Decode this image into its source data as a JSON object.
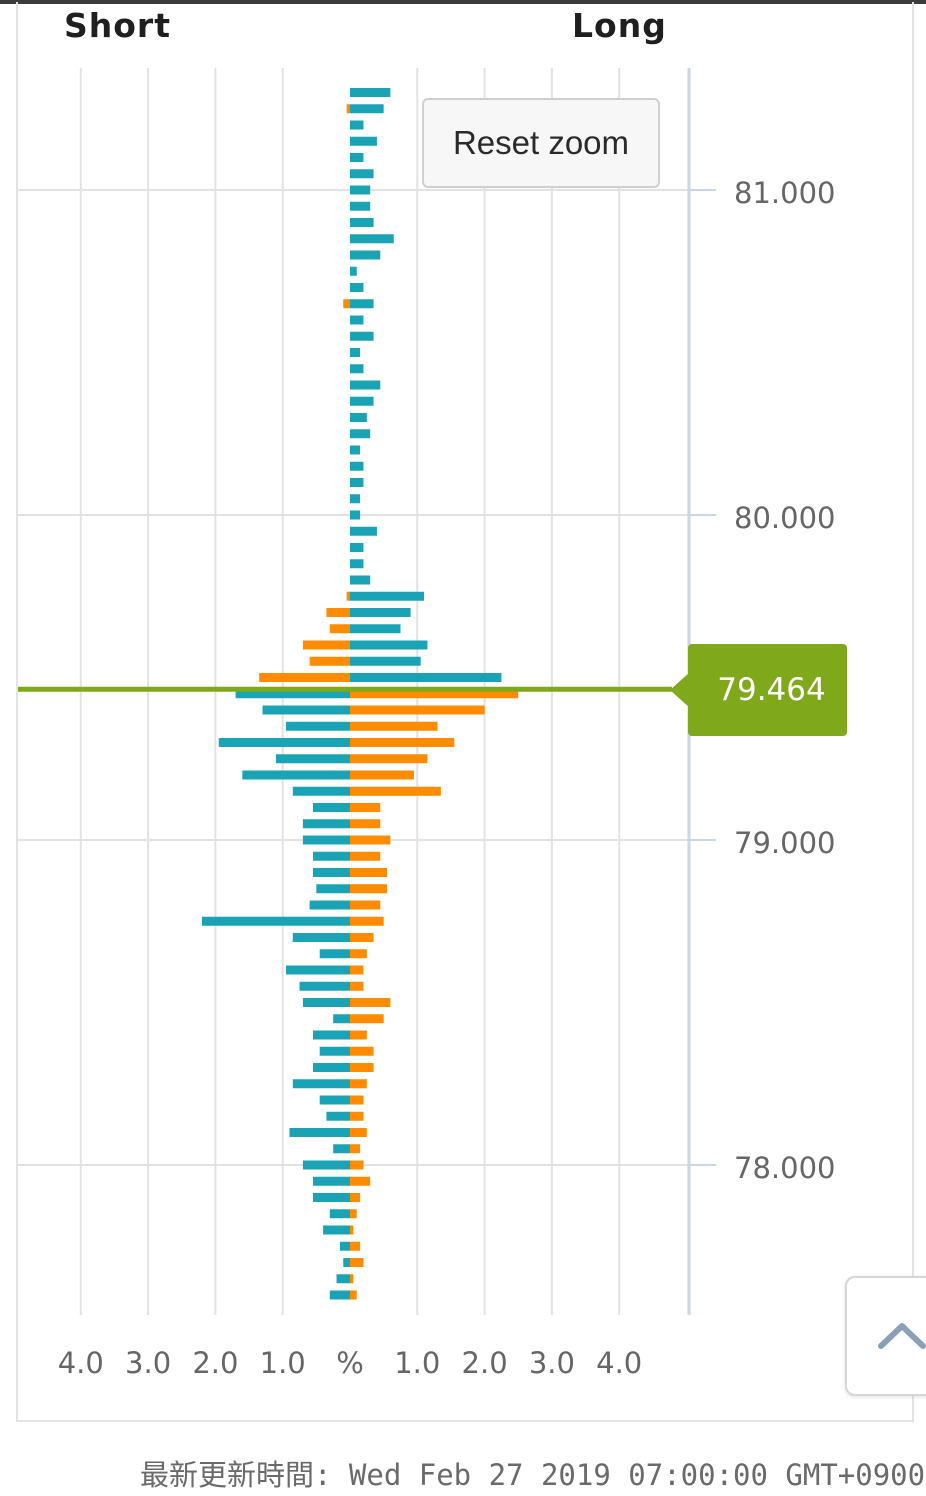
{
  "header": {
    "short_label": "Short",
    "long_label": "Long"
  },
  "reset_zoom_label": "Reset zoom",
  "current_price": "79.464",
  "last_updated": "最新更新時間: Wed Feb 27 2019 07:00:00 GMT+0900",
  "colors": {
    "long": "#1aa3b4",
    "short": "#ff8c00",
    "price_line": "#7fa81a",
    "grid": "#e2e2e2",
    "axis": "#c9d6e8"
  },
  "icons": {
    "scroll_top": "chevron-up-icon"
  },
  "chart_data": {
    "type": "bar",
    "orientation": "horizontal",
    "y_axis": {
      "ticks": [
        "81.000",
        "80.000",
        "79.000",
        "78.000"
      ],
      "range": [
        77.55,
        81.38
      ],
      "position": "right"
    },
    "x_axis": {
      "ticks": [
        "4.0",
        "3.0",
        "2.0",
        "1.0",
        "%",
        "1.0",
        "2.0",
        "3.0",
        "4.0"
      ],
      "range": [
        -4.0,
        4.0
      ],
      "unit": "%"
    },
    "current_price": 79.464,
    "series": [
      {
        "name": "Short",
        "price": [
          81.3,
          81.25,
          81.2,
          81.15,
          81.1,
          81.05,
          81.0,
          80.95,
          80.9,
          80.85,
          80.8,
          80.75,
          80.7,
          80.65,
          80.6,
          80.55,
          80.5,
          80.45,
          80.4,
          80.35,
          80.3,
          80.25,
          80.2,
          80.15,
          80.1,
          80.05,
          80.0,
          79.95,
          79.9,
          79.85,
          79.8,
          79.75,
          79.7,
          79.65,
          79.6,
          79.55,
          79.5,
          79.45,
          79.4,
          79.35,
          79.3,
          79.25,
          79.2,
          79.15,
          79.1,
          79.05,
          79.0,
          78.95,
          78.9,
          78.85,
          78.8,
          78.75,
          78.7,
          78.65,
          78.6,
          78.55,
          78.5,
          78.45,
          78.4,
          78.35,
          78.3,
          78.25,
          78.2,
          78.15,
          78.1,
          78.05,
          78.0,
          77.95,
          77.9,
          77.85,
          77.8,
          77.75,
          77.7,
          77.65,
          77.6
        ],
        "values": [
          0.0,
          0.05,
          0.0,
          0.0,
          0.0,
          0.0,
          0.0,
          0.0,
          0.0,
          0.0,
          0.0,
          0.0,
          0.0,
          0.1,
          0.0,
          0.0,
          0.0,
          0.0,
          0.0,
          0.0,
          0.0,
          0.0,
          0.0,
          0.0,
          0.0,
          0.0,
          0.0,
          0.0,
          0.0,
          0.0,
          0.0,
          0.05,
          0.35,
          0.3,
          0.7,
          0.6,
          1.35,
          1.7,
          1.3,
          0.95,
          1.95,
          1.1,
          1.6,
          0.85,
          0.55,
          0.7,
          0.7,
          0.55,
          0.55,
          0.5,
          0.6,
          2.2,
          0.85,
          0.45,
          0.95,
          0.75,
          0.7,
          0.25,
          0.55,
          0.45,
          0.55,
          0.85,
          0.45,
          0.35,
          0.9,
          0.25,
          0.7,
          0.55,
          0.55,
          0.3,
          0.4,
          0.15,
          0.1,
          0.2,
          0.3
        ]
      },
      {
        "name": "Long",
        "price": [
          81.3,
          81.25,
          81.2,
          81.15,
          81.1,
          81.05,
          81.0,
          80.95,
          80.9,
          80.85,
          80.8,
          80.75,
          80.7,
          80.65,
          80.6,
          80.55,
          80.5,
          80.45,
          80.4,
          80.35,
          80.3,
          80.25,
          80.2,
          80.15,
          80.1,
          80.05,
          80.0,
          79.95,
          79.9,
          79.85,
          79.8,
          79.75,
          79.7,
          79.65,
          79.6,
          79.55,
          79.5,
          79.45,
          79.4,
          79.35,
          79.3,
          79.25,
          79.2,
          79.15,
          79.1,
          79.05,
          79.0,
          78.95,
          78.9,
          78.85,
          78.8,
          78.75,
          78.7,
          78.65,
          78.6,
          78.55,
          78.5,
          78.45,
          78.4,
          78.35,
          78.3,
          78.25,
          78.2,
          78.15,
          78.1,
          78.05,
          78.0,
          77.95,
          77.9,
          77.85,
          77.8,
          77.75,
          77.7,
          77.65,
          77.6
        ],
        "values": [
          0.6,
          0.5,
          0.2,
          0.4,
          0.2,
          0.35,
          0.3,
          0.3,
          0.35,
          0.65,
          0.45,
          0.1,
          0.2,
          0.35,
          0.2,
          0.35,
          0.15,
          0.2,
          0.45,
          0.35,
          0.25,
          0.3,
          0.15,
          0.2,
          0.2,
          0.15,
          0.15,
          0.4,
          0.2,
          0.2,
          0.3,
          1.1,
          0.9,
          0.75,
          1.15,
          1.05,
          2.25,
          2.5,
          2.0,
          1.3,
          1.55,
          1.15,
          0.95,
          1.35,
          0.45,
          0.45,
          0.6,
          0.45,
          0.55,
          0.55,
          0.45,
          0.5,
          0.35,
          0.25,
          0.2,
          0.2,
          0.6,
          0.5,
          0.25,
          0.35,
          0.35,
          0.25,
          0.2,
          0.2,
          0.25,
          0.15,
          0.2,
          0.3,
          0.15,
          0.1,
          0.05,
          0.15,
          0.2,
          0.05,
          0.1
        ]
      }
    ]
  }
}
